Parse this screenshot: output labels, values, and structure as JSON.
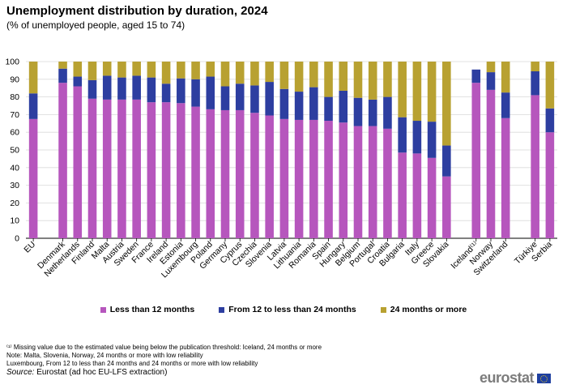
{
  "chart_data": {
    "type": "bar",
    "stacked": true,
    "title": "Unemployment distribution by duration, 2024",
    "subtitle": "(% of unemployed people, aged 15 to 74)",
    "ylim": [
      0,
      100
    ],
    "yticks": [
      0,
      10,
      20,
      30,
      40,
      50,
      60,
      70,
      80,
      90,
      100
    ],
    "grid": true,
    "categories": [
      "EU",
      "Denmark",
      "Netherlands",
      "Finland",
      "Malta",
      "Austria",
      "Sweden",
      "France",
      "Ireland",
      "Estonia",
      "Luxembourg",
      "Poland",
      "Germany",
      "Cyprus",
      "Czechia",
      "Slovenia",
      "Latvia",
      "Lithuania",
      "Romania",
      "Spain",
      "Hungary",
      "Belgium",
      "Portugal",
      "Croatia",
      "Bulgaria",
      "Italy",
      "Greece",
      "Slovakia",
      "Iceland⁽¹⁾",
      "Norway",
      "Switzerland",
      "Türkiye",
      "Serbia"
    ],
    "gap_after": [
      "EU",
      "Slovakia",
      "Switzerland"
    ],
    "series": [
      {
        "name": "Less than 12 months",
        "color": "#b656bd",
        "values": [
          67.5,
          88,
          86,
          79,
          78.5,
          78.5,
          78.5,
          77,
          77,
          76.5,
          74.5,
          73,
          72.5,
          72.5,
          71,
          69.5,
          67.5,
          67,
          67,
          66.5,
          65.5,
          63.5,
          63.5,
          62,
          48.5,
          48,
          45.5,
          35,
          88,
          84,
          68,
          81,
          60
        ]
      },
      {
        "name": "From 12 to less than 24 months",
        "color": "#2d3ea0",
        "values": [
          14.5,
          8,
          5.5,
          10.5,
          13.5,
          12.5,
          13.5,
          14,
          10.5,
          14,
          15.5,
          18.5,
          13.5,
          15,
          15.5,
          19,
          17,
          16,
          18.5,
          13.5,
          18,
          16,
          15,
          18,
          20,
          18.5,
          20.5,
          17.5,
          7.5,
          10,
          14.5,
          13.5,
          13.5
        ]
      },
      {
        "name": "24 months or more",
        "color": "#b8a131",
        "values": [
          18,
          4,
          8.5,
          10.5,
          8,
          9,
          8,
          9,
          12.5,
          9.5,
          10,
          8.5,
          14,
          12.5,
          13.5,
          11.5,
          15.5,
          17,
          14.5,
          20,
          16.5,
          20.5,
          21.5,
          20,
          31.5,
          33.5,
          34,
          47.5,
          null,
          6,
          17.5,
          5.5,
          26.5
        ]
      }
    ]
  },
  "legend": {
    "item1": "Less than 12 months",
    "item2": "From 12 to less than 24 months",
    "item3": "24 months or more"
  },
  "notes": {
    "line1": "⁽¹⁾ Missing value due to the estimated value being below the publication threshold: Iceland, 24 months or more",
    "line2": "Note: Malta, Slovenia, Norway, 24 months or more with low reliability",
    "line3": "Luxembourg, From 12 to less than 24 months and 24 months or more with low reliability",
    "source_label": "Source:",
    "source_text": " Eurostat (ad hoc EU-LFS extraction)"
  },
  "logo": {
    "text": "eurostat"
  }
}
